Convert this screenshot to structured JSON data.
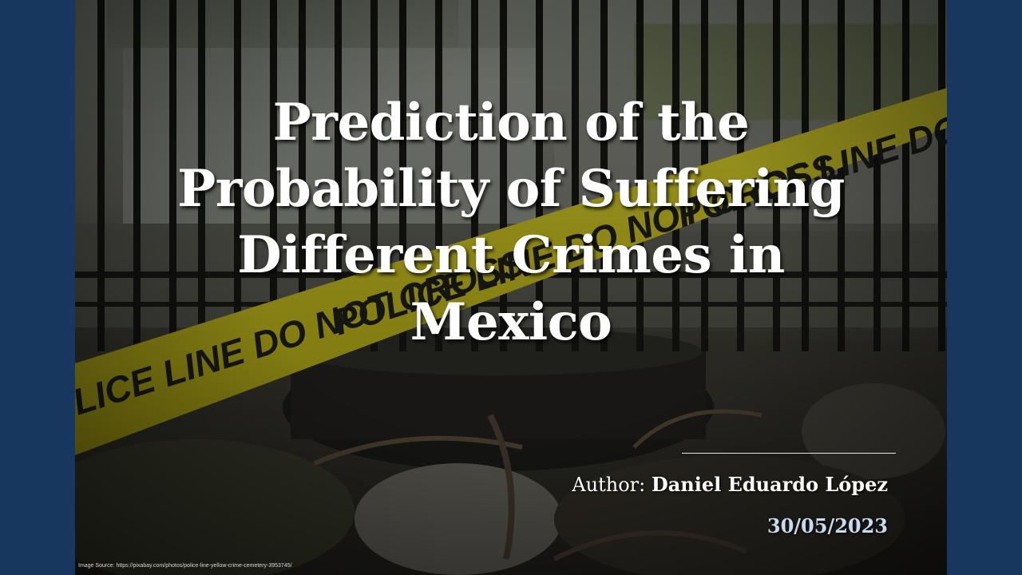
{
  "slide": {
    "title_lines": [
      "Prediction of the",
      "Probability of Suffering",
      "Different Crimes in",
      "Mexico"
    ],
    "author_prefix": "Author:",
    "author_name": "Daniel Eduardo López",
    "date": "30/05/2023",
    "image_source": "Image Source: https://pixabay.com/photos/police-line-yellow-crime-cemetery-3953745/",
    "tape_text": "POLICE LINE DO NOT CROSS"
  },
  "colors": {
    "frame": "#17375e",
    "tape": "#c9c020",
    "title": "#ffffff",
    "date": "#c9d9ee"
  }
}
